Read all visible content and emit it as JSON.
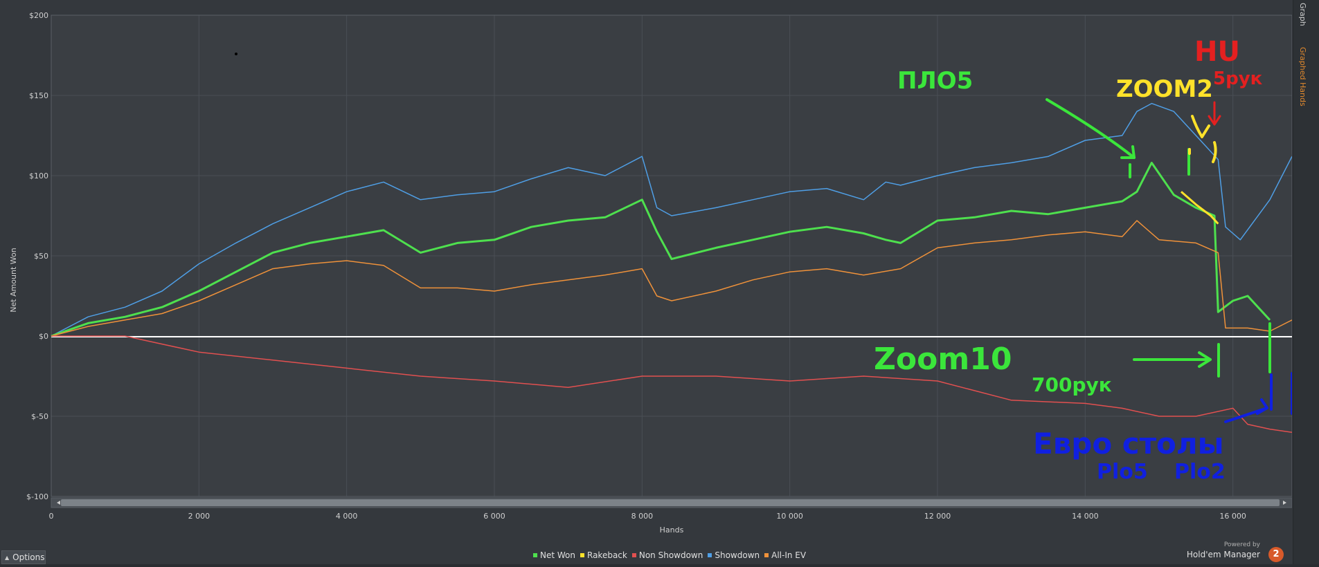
{
  "sidebar": {
    "tab_graph": "Graph",
    "tab_graphed_hands": "Graphed Hands"
  },
  "options": {
    "label": "Options"
  },
  "brand": {
    "powered_by": "Powered by",
    "name": "Hold'em Manager",
    "badge": "2"
  },
  "legend": [
    {
      "label": "Net Won",
      "color": "#4ee04e"
    },
    {
      "label": "Rakeback",
      "color": "#ffe22a"
    },
    {
      "label": "Non Showdown",
      "color": "#e25050"
    },
    {
      "label": "Showdown",
      "color": "#4f9fe6"
    },
    {
      "label": "All-In EV",
      "color": "#f0923a"
    }
  ],
  "annotations": {
    "pl05": "ПЛО5",
    "zoom2": "ZOOM2",
    "hu": "HU",
    "hu_hands": "5рук",
    "zoom10": "Zoom10",
    "zoom10_hands": "700рук",
    "euro_tables": "Евро столы",
    "pl05_b": "Plo5",
    "pl02": "Plo2"
  },
  "chart_data": {
    "type": "line",
    "xlabel": "Hands",
    "ylabel": "Net Amount Won",
    "xlim": [
      0,
      16800
    ],
    "ylim": [
      -100,
      200
    ],
    "x_ticks": [
      "0",
      "2 000",
      "4 000",
      "6 000",
      "8 000",
      "10 000",
      "12 000",
      "14 000",
      "16 000"
    ],
    "x_tick_values": [
      0,
      2000,
      4000,
      6000,
      8000,
      10000,
      12000,
      14000,
      16000
    ],
    "y_ticks": [
      "$200",
      "$150",
      "$100",
      "$50",
      "$0",
      "$-50",
      "$-100"
    ],
    "y_tick_values": [
      200,
      150,
      100,
      50,
      0,
      -50,
      -100
    ],
    "grid": true,
    "legend_position": "bottom",
    "series": [
      {
        "name": "Showdown",
        "color": "#4f9fe6",
        "x": [
          0,
          500,
          1000,
          1500,
          2000,
          2500,
          3000,
          3500,
          4000,
          4500,
          5000,
          5500,
          6000,
          6500,
          7000,
          7500,
          8000,
          8200,
          8400,
          9000,
          9500,
          10000,
          10500,
          11000,
          11300,
          11500,
          12000,
          12500,
          13000,
          13500,
          14000,
          14500,
          14700,
          14900,
          15200,
          15500,
          15800,
          15900,
          16100,
          16500,
          16800
        ],
        "y": [
          0,
          12,
          18,
          28,
          45,
          58,
          70,
          80,
          90,
          96,
          85,
          88,
          90,
          98,
          105,
          100,
          112,
          80,
          75,
          80,
          85,
          90,
          92,
          85,
          96,
          94,
          100,
          105,
          108,
          112,
          122,
          125,
          140,
          145,
          140,
          125,
          110,
          68,
          60,
          85,
          112
        ]
      },
      {
        "name": "Net Won",
        "color": "#4ee04e",
        "x": [
          0,
          500,
          1000,
          1500,
          2000,
          2500,
          3000,
          3500,
          4000,
          4500,
          5000,
          5500,
          6000,
          6500,
          7000,
          7500,
          8000,
          8200,
          8400,
          9000,
          9500,
          10000,
          10500,
          11000,
          11300,
          11500,
          12000,
          12500,
          13000,
          13500,
          14000,
          14500,
          14700,
          14900,
          15200,
          15500,
          15750,
          15800,
          16000,
          16200,
          16500
        ],
        "y": [
          0,
          8,
          12,
          18,
          28,
          40,
          52,
          58,
          62,
          66,
          52,
          58,
          60,
          68,
          72,
          74,
          85,
          65,
          48,
          55,
          60,
          65,
          68,
          64,
          60,
          58,
          72,
          74,
          78,
          76,
          80,
          84,
          90,
          108,
          88,
          80,
          75,
          15,
          22,
          25,
          10
        ]
      },
      {
        "name": "All-In EV",
        "color": "#f0923a",
        "x": [
          0,
          500,
          1000,
          1500,
          2000,
          2500,
          3000,
          3500,
          4000,
          4500,
          5000,
          5500,
          6000,
          6500,
          7000,
          7500,
          8000,
          8200,
          8400,
          9000,
          9500,
          10000,
          10500,
          11000,
          11500,
          12000,
          12500,
          13000,
          13500,
          14000,
          14500,
          14700,
          15000,
          15500,
          15800,
          15900,
          16200,
          16500,
          16800
        ],
        "y": [
          0,
          6,
          10,
          14,
          22,
          32,
          42,
          45,
          47,
          44,
          30,
          30,
          28,
          32,
          35,
          38,
          42,
          25,
          22,
          28,
          35,
          40,
          42,
          38,
          42,
          55,
          58,
          60,
          63,
          65,
          62,
          72,
          60,
          58,
          52,
          5,
          5,
          3,
          10
        ]
      },
      {
        "name": "Non Showdown",
        "color": "#e25050",
        "x": [
          0,
          1000,
          2000,
          3000,
          4000,
          5000,
          6000,
          7000,
          8000,
          9000,
          10000,
          11000,
          12000,
          13000,
          14000,
          14500,
          15000,
          15500,
          16000,
          16200,
          16500,
          16800
        ],
        "y": [
          0,
          0,
          -10,
          -15,
          -20,
          -25,
          -28,
          -32,
          -25,
          -25,
          -28,
          -25,
          -28,
          -40,
          -42,
          -45,
          -50,
          -50,
          -45,
          -55,
          -58,
          -60
        ]
      },
      {
        "name": "Rakeback",
        "color": "#ffe22a",
        "x": [
          15300,
          15500,
          15700,
          15800
        ],
        "y": [
          90,
          82,
          75,
          70
        ]
      }
    ]
  }
}
